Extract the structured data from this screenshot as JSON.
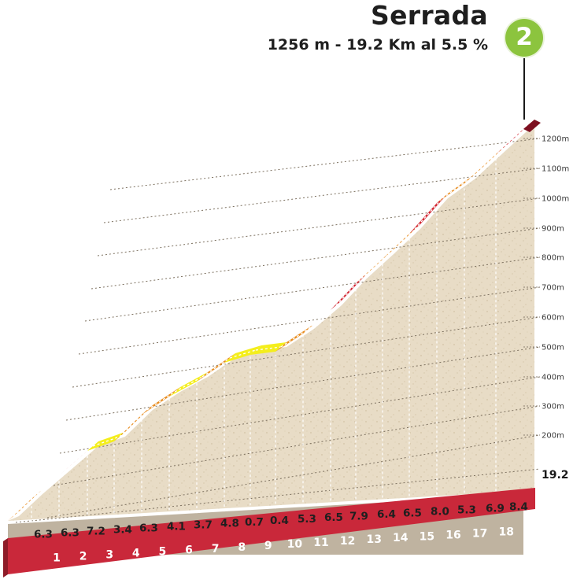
{
  "header": {
    "title": "Serrada",
    "subtitle": "1256 m - 19.2 Km al 5.5 %",
    "badge": "2"
  },
  "colors": {
    "steep": "#d2232e",
    "medium": "#e88c1e",
    "easy": "#f4ee1c",
    "terrain": "#e6dac4",
    "band": "#c9283a",
    "badge": "#8cc43e"
  },
  "chart_data": {
    "type": "area",
    "title": "Serrada",
    "x_unit": "km",
    "xlim": [
      0,
      19.2
    ],
    "ylim": [
      0,
      1256
    ],
    "km_markers": [
      "1",
      "2",
      "3",
      "4",
      "5",
      "6",
      "7",
      "8",
      "9",
      "10",
      "11",
      "12",
      "13",
      "14",
      "15",
      "16",
      "17",
      "18"
    ],
    "total_distance_label": "19.2",
    "segment_gradients": [
      "6.3",
      "6.3",
      "7.2",
      "3.4",
      "6.3",
      "4.1",
      "3.7",
      "4.8",
      "0.7",
      "0.4",
      "5.3",
      "6.5",
      "7.9",
      "6.4",
      "6.5",
      "8.0",
      "5.3",
      "6.9",
      "8.4"
    ],
    "segment_categories": [
      "medium",
      "medium",
      "steep",
      "easy",
      "medium",
      "medium",
      "easy",
      "medium",
      "easy",
      "easy",
      "medium",
      "medium",
      "steep",
      "medium",
      "medium",
      "steep",
      "medium",
      "medium",
      "steep"
    ],
    "altitude_ticks": [
      "200m",
      "300m",
      "400m",
      "500m",
      "600m",
      "700m",
      "800m",
      "900m",
      "1000m",
      "1100m",
      "1200m"
    ],
    "altitude_tick_values": [
      200,
      300,
      400,
      500,
      600,
      700,
      800,
      900,
      1000,
      1100,
      1200
    ]
  }
}
